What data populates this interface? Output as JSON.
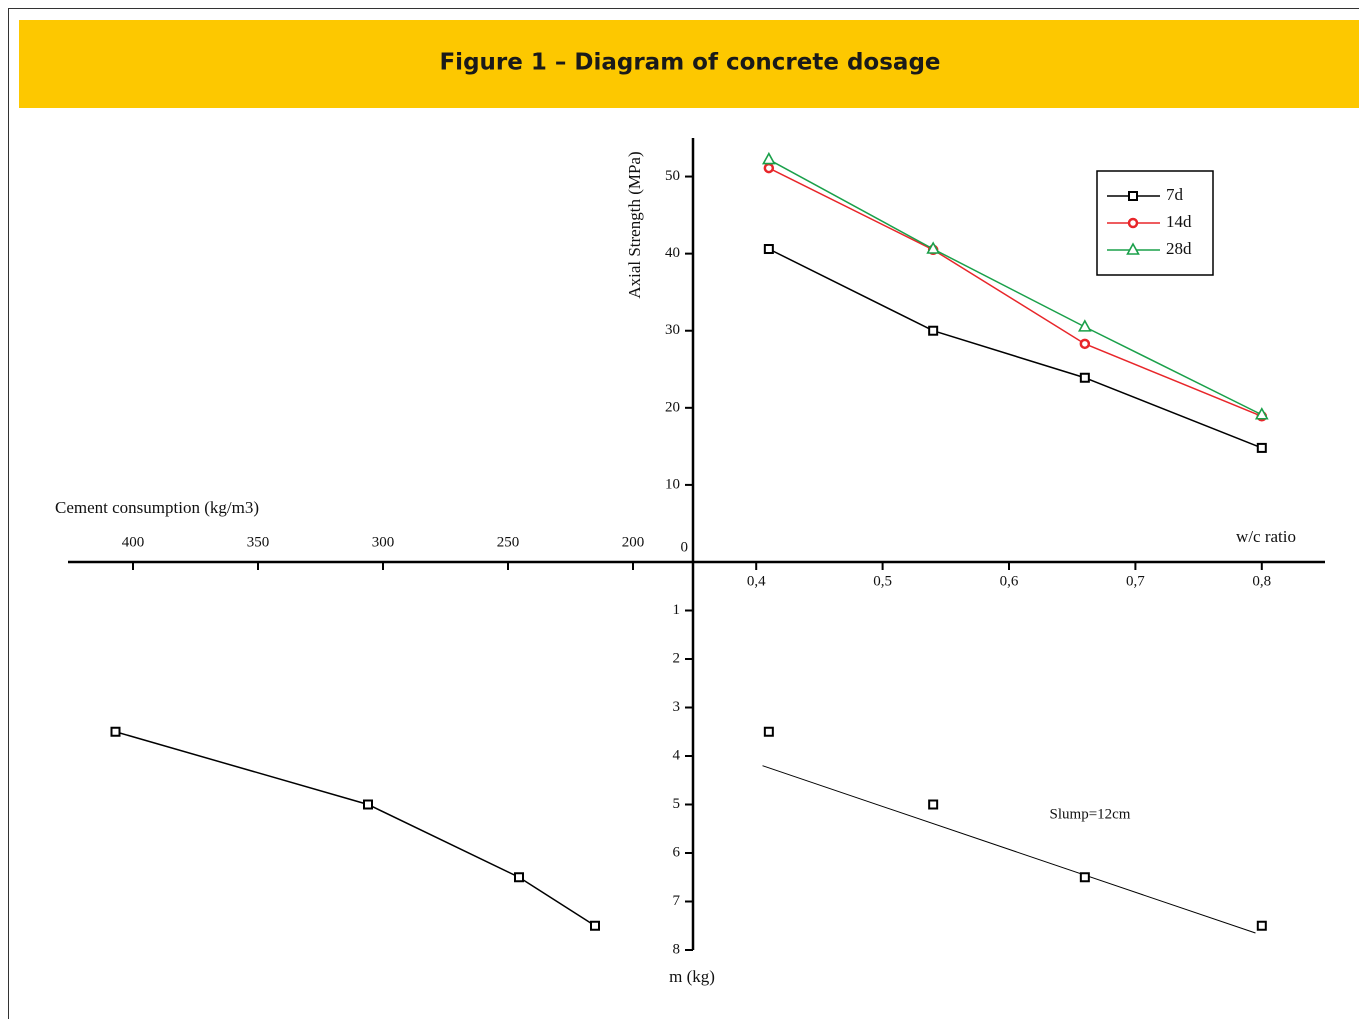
{
  "header": {
    "title": "Figure 1 – Diagram of concrete dosage"
  },
  "chart_data": [
    {
      "type": "line",
      "x_label": "w/c ratio",
      "y_label": "Axial Strength (MPa)",
      "x": [
        0.41,
        0.54,
        0.66,
        0.8
      ],
      "series": [
        {
          "name": "7d",
          "color": "#000000",
          "marker": "square",
          "values": [
            40.6,
            30,
            23.9,
            14.8
          ]
        },
        {
          "name": "14d",
          "color": "#e8262a",
          "marker": "circle",
          "values": [
            51.1,
            40.5,
            28.3,
            18.9
          ]
        },
        {
          "name": "28d",
          "color": "#1aa04a",
          "marker": "triangle",
          "values": [
            52.2,
            40.6,
            30.5,
            19.1
          ]
        }
      ],
      "xlim": [
        0.35,
        0.85
      ],
      "xticks": [
        {
          "value": 0.4,
          "label": "0,4"
        },
        {
          "value": 0.5,
          "label": "0,5"
        },
        {
          "value": 0.6,
          "label": "0,6"
        },
        {
          "value": 0.7,
          "label": "0,7"
        },
        {
          "value": 0.8,
          "label": "0,8"
        }
      ],
      "ylim": [
        0,
        55
      ],
      "yticks": [
        0,
        10,
        20,
        30,
        40,
        50
      ],
      "legend": "upper right"
    },
    {
      "type": "line",
      "x_label": "Cement consumption (kg/m3)",
      "y_label": "m (kg)",
      "x": [
        407,
        306,
        245.6,
        215.2
      ],
      "series": [
        {
          "color": "#000000",
          "marker": "square",
          "values": [
            3.5,
            5,
            6.5,
            7.5
          ]
        }
      ],
      "xlim": [
        426,
        176
      ],
      "xticks": [
        400,
        350,
        300,
        250,
        200
      ],
      "ylim": [
        0,
        8
      ],
      "yticks": [
        1,
        2,
        3,
        4,
        5,
        6,
        7,
        8
      ]
    },
    {
      "type": "scatter",
      "annotation": "Slump=12cm",
      "x": [
        0.41,
        0.54,
        0.66,
        0.8
      ],
      "series": [
        {
          "color": "#000000",
          "marker": "square",
          "values": [
            3.5,
            5,
            6.5,
            7.5
          ]
        }
      ],
      "trendline": {
        "x": [
          0.405,
          0.795
        ],
        "values": [
          4.2,
          7.65
        ],
        "color": "#000000"
      },
      "xlim": [
        0.35,
        0.85
      ],
      "ylim": [
        0,
        8
      ]
    }
  ]
}
